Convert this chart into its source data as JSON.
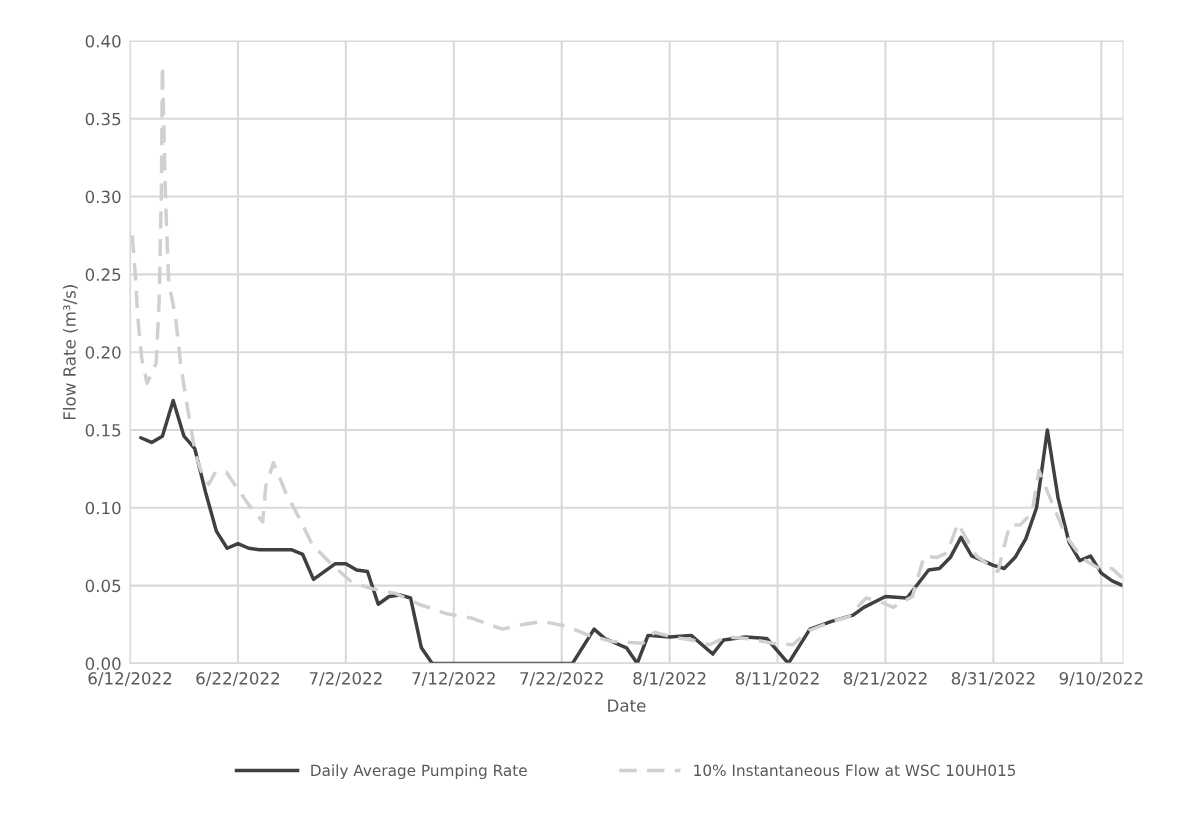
{
  "chart_data": {
    "type": "line",
    "xlabel": "Date",
    "ylabel": "Flow Rate (m³/s)",
    "xlim": [
      "2022-06-12",
      "2022-09-12"
    ],
    "xticks": [
      {
        "value": "2022-06-12",
        "label": "6/12/2022"
      },
      {
        "value": "2022-06-22",
        "label": "6/22/2022"
      },
      {
        "value": "2022-07-02",
        "label": "7/2/2022"
      },
      {
        "value": "2022-07-12",
        "label": "7/12/2022"
      },
      {
        "value": "2022-07-22",
        "label": "7/22/2022"
      },
      {
        "value": "2022-08-01",
        "label": "8/1/2022"
      },
      {
        "value": "2022-08-11",
        "label": "8/11/2022"
      },
      {
        "value": "2022-08-21",
        "label": "8/21/2022"
      },
      {
        "value": "2022-08-31",
        "label": "8/31/2022"
      },
      {
        "value": "2022-09-10",
        "label": "9/10/2022"
      }
    ],
    "ylim": [
      0,
      0.4
    ],
    "yticks": [
      {
        "value": 0,
        "label": "0.00"
      },
      {
        "value": 0.05,
        "label": "0.05"
      },
      {
        "value": 0.1,
        "label": "0.10"
      },
      {
        "value": 0.15,
        "label": "0.15"
      },
      {
        "value": 0.2,
        "label": "0.20"
      },
      {
        "value": 0.25,
        "label": "0.25"
      },
      {
        "value": 0.3,
        "label": "0.30"
      },
      {
        "value": 0.35,
        "label": "0.35"
      },
      {
        "value": 0.4,
        "label": "0.40"
      }
    ],
    "grid": true,
    "legend": "bottom",
    "marker": "none",
    "series": [
      {
        "name": "Daily Average Pumping Rate",
        "color": "#404040",
        "line_style": "solid",
        "x": [
          "2022-06-13",
          "2022-06-14",
          "2022-06-15",
          "2022-06-16",
          "2022-06-17",
          "2022-06-18",
          "2022-06-19",
          "2022-06-20",
          "2022-06-21",
          "2022-06-22",
          "2022-06-23",
          "2022-06-24",
          "2022-06-25",
          "2022-06-26",
          "2022-06-27",
          "2022-06-28",
          "2022-06-29",
          "2022-06-30",
          "2022-07-01",
          "2022-07-02",
          "2022-07-03",
          "2022-07-04",
          "2022-07-05",
          "2022-07-06",
          "2022-07-07",
          "2022-07-08",
          "2022-07-09",
          "2022-07-10",
          "2022-07-23",
          "2022-07-25",
          "2022-07-26",
          "2022-07-28",
          "2022-07-29",
          "2022-07-30",
          "2022-08-01",
          "2022-08-03",
          "2022-08-05",
          "2022-08-06",
          "2022-08-08",
          "2022-08-10",
          "2022-08-12",
          "2022-08-14",
          "2022-08-16",
          "2022-08-18",
          "2022-08-19",
          "2022-08-21",
          "2022-08-23",
          "2022-08-25",
          "2022-08-26",
          "2022-08-27",
          "2022-08-28",
          "2022-08-29",
          "2022-08-30",
          "2022-08-31",
          "2022-09-01",
          "2022-09-02",
          "2022-09-03",
          "2022-09-04",
          "2022-09-05",
          "2022-09-06",
          "2022-09-07",
          "2022-09-08",
          "2022-09-09",
          "2022-09-10",
          "2022-09-11",
          "2022-09-12"
        ],
        "values": [
          0.145,
          0.142,
          0.146,
          0.169,
          0.146,
          0.138,
          0.11,
          0.085,
          0.074,
          0.077,
          0.074,
          0.073,
          0.073,
          0.073,
          0.073,
          0.07,
          0.054,
          0.059,
          0.064,
          0.064,
          0.06,
          0.059,
          0.038,
          0.043,
          0.044,
          0.042,
          0.01,
          0,
          0,
          0.022,
          0.016,
          0.01,
          0,
          0.018,
          0.017,
          0.018,
          0.006,
          0.015,
          0.017,
          0.016,
          0,
          0.022,
          0.027,
          0.031,
          0.036,
          0.043,
          0.042,
          0.06,
          0.061,
          0.068,
          0.081,
          0.069,
          0.066,
          0.063,
          0.061,
          0.068,
          0.08,
          0.1,
          0.15,
          0.106,
          0.078,
          0.066,
          0.069,
          0.058,
          0.053,
          0.05
        ]
      },
      {
        "name": "10% Instantaneous Flow at WSC 10UH015",
        "color": "#d0d0d0",
        "line_style": "dashed",
        "x": [
          "2022-06-12T05:00",
          "2022-06-12T12:00",
          "2022-06-12T17:00",
          "2022-06-13T02:00",
          "2022-06-13T14:00",
          "2022-06-14T10:00",
          "2022-06-14T17:00",
          "2022-06-14T22:00",
          "2022-06-15T00:00",
          "2022-06-15T07:00",
          "2022-06-15T14:00",
          "2022-06-16T05:00",
          "2022-06-16T17:00",
          "2022-06-17T12:00",
          "2022-06-18T02:00",
          "2022-06-18T17:00",
          "2022-06-19T07:00",
          "2022-06-19T22:00",
          "2022-06-20T22:00",
          "2022-06-21T19:00",
          "2022-06-23T00:00",
          "2022-06-24T07:00",
          "2022-06-24T14:00",
          "2022-06-25T07:00",
          "2022-06-26T10:00",
          "2022-06-27T17:00",
          "2022-06-28T22:00",
          "2022-06-30T19:00",
          "2022-07-02T14:00",
          "2022-07-04T10:00",
          "2022-07-06T14:00",
          "2022-07-08T19:00",
          "2022-07-11T07:00",
          "2022-07-13T17:00",
          "2022-07-16T12:00",
          "2022-07-18T10:00",
          "2022-07-20T05:00",
          "2022-07-22T10:00",
          "2022-07-24T12:00",
          "2022-07-26T17:00",
          "2022-07-29T12:00",
          "2022-07-30T14:00",
          "2022-08-01T05:00",
          "2022-08-03T02:00",
          "2022-08-04T17:00",
          "2022-08-06T05:00",
          "2022-08-08T02:00",
          "2022-08-10T12:00",
          "2022-08-12T10:00",
          "2022-08-13T22:00",
          "2022-08-16T02:00",
          "2022-08-17T14:00",
          "2022-08-19T05:00",
          "2022-08-20T10:00",
          "2022-08-21T17:00",
          "2022-08-23T12:00",
          "2022-08-24T14:00",
          "2022-08-25T17:00",
          "2022-08-26T17:00",
          "2022-08-27T17:00",
          "2022-08-29T10:00",
          "2022-08-31T10:00",
          "2022-09-01T12:00",
          "2022-09-02T12:00",
          "2022-09-03T14:00",
          "2022-09-04T05:00",
          "2022-09-05T12:00",
          "2022-09-06T17:00",
          "2022-09-08T07:00",
          "2022-09-09T19:00",
          "2022-09-11T00:00",
          "2022-09-11T22:00"
        ],
        "values": [
          0.275,
          0.249,
          0.223,
          0.196,
          0.18,
          0.193,
          0.234,
          0.309,
          0.384,
          0.298,
          0.245,
          0.223,
          0.191,
          0.157,
          0.134,
          0.121,
          0.115,
          0.123,
          0.123,
          0.114,
          0.102,
          0.091,
          0.114,
          0.129,
          0.11,
          0.093,
          0.076,
          0.063,
          0.052,
          0.048,
          0.045,
          0.038,
          0.032,
          0.029,
          0.022,
          0.025,
          0.027,
          0.024,
          0.018,
          0.014,
          0.013,
          0.02,
          0.017,
          0.015,
          0.012,
          0.017,
          0.016,
          0.013,
          0.012,
          0.021,
          0.027,
          0.03,
          0.042,
          0.04,
          0.036,
          0.043,
          0.069,
          0.068,
          0.071,
          0.09,
          0.069,
          0.059,
          0.089,
          0.089,
          0.097,
          0.124,
          0.102,
          0.082,
          0.067,
          0.061,
          0.061,
          0.055
        ]
      }
    ]
  }
}
